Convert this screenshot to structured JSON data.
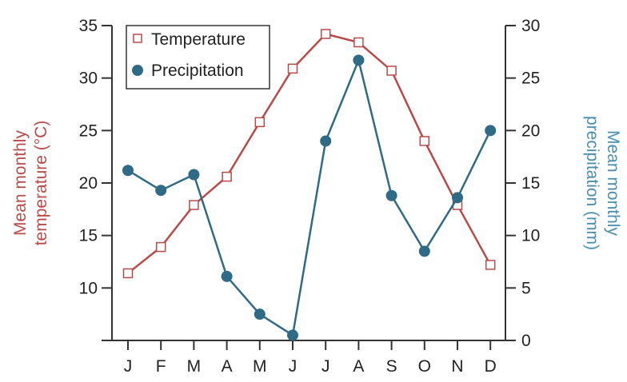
{
  "chart_data": {
    "type": "line",
    "categories": [
      "J",
      "F",
      "M",
      "A",
      "M",
      "J",
      "J",
      "A",
      "S",
      "O",
      "N",
      "D"
    ],
    "series": [
      {
        "name": "Temperature",
        "axis": "left",
        "marker": "open-square",
        "color": "#b84a48",
        "values": [
          11.4,
          13.9,
          17.9,
          20.6,
          25.8,
          30.9,
          34.2,
          33.4,
          30.7,
          24.0,
          17.9,
          12.2
        ]
      },
      {
        "name": "Precipitation",
        "axis": "right",
        "marker": "filled-circle",
        "color": "#2f6b86",
        "values": [
          16.2,
          14.3,
          15.8,
          6.1,
          2.5,
          0.5,
          19.0,
          26.7,
          13.8,
          8.5,
          13.6,
          20.0
        ]
      }
    ],
    "ylabel_left": [
      "Mean monthly",
      "temperature (°C)"
    ],
    "ylabel_right": [
      "Mean monthly",
      "precipitation (mm)"
    ],
    "ylim_left": [
      5,
      35
    ],
    "yticks_left": [
      10,
      15,
      20,
      25,
      30,
      35
    ],
    "ylim_right": [
      0,
      30
    ],
    "yticks_right": [
      0,
      5,
      10,
      15,
      20,
      25,
      30
    ],
    "legend": "top-left",
    "grid": false,
    "left_label_color": "#b84a48",
    "right_label_color": "#4a8fb0"
  }
}
